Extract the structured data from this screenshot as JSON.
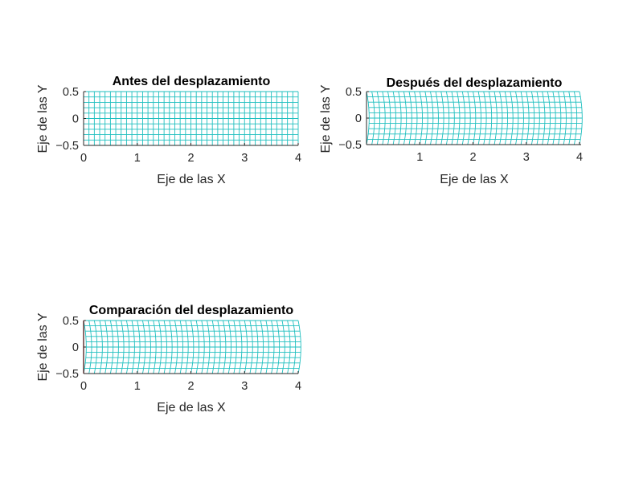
{
  "colors": {
    "mesh": "#1fbfbf",
    "axis": "#262626",
    "tick_text": "#262626",
    "title": "#000000",
    "reference_line": "#e03030",
    "background": "#ffffff"
  },
  "chart_data": [
    {
      "type": "mesh",
      "title": "Antes del desplazamiento",
      "xlabel": "Eje de las X",
      "ylabel": "Eje de las Y",
      "xlim": [
        0,
        4
      ],
      "ylim": [
        -0.5,
        0.5
      ],
      "x_ticks": [
        "0",
        "1",
        "2",
        "3",
        "4"
      ],
      "y_ticks": [
        "-0.5",
        "0",
        "0.5"
      ],
      "mesh": {
        "x_range": [
          0,
          4
        ],
        "y_range": [
          -0.5,
          0.5
        ],
        "columns": 40,
        "rows": 10,
        "tip_bulge": 0,
        "root_bulge": 0
      },
      "box": false
    },
    {
      "type": "mesh",
      "title": "Después del desplazamiento",
      "xlabel": "Eje de las X",
      "ylabel": "Eje de las Y",
      "xlim": [
        0,
        4.03
      ],
      "ylim": [
        -0.5,
        0.5
      ],
      "x_ticks": [
        "1",
        "2",
        "3",
        "4"
      ],
      "y_ticks": [
        "-0.5",
        "0",
        "0.5"
      ],
      "mesh": {
        "x_range": [
          0,
          4
        ],
        "y_range": [
          -0.5,
          0.5
        ],
        "columns": 40,
        "rows": 10,
        "tip_bulge": 0.05,
        "root_bulge": 0.05
      },
      "box": false
    },
    {
      "type": "mesh",
      "title": "Comparación del desplazamiento",
      "xlabel": "Eje de las X",
      "ylabel": "Eje de las Y",
      "xlim": [
        0,
        4
      ],
      "ylim": [
        -0.5,
        0.5
      ],
      "x_ticks": [
        "0",
        "1",
        "2",
        "3",
        "4"
      ],
      "y_ticks": [
        "-0.5",
        "0",
        "0.5"
      ],
      "mesh": {
        "x_range": [
          0,
          4
        ],
        "y_range": [
          -0.5,
          0.5
        ],
        "columns": 40,
        "rows": 10,
        "tip_bulge": 0.05,
        "root_bulge": 0.05
      },
      "reference_line": {
        "x": [
          0,
          0
        ],
        "y": [
          -0.5,
          0.5
        ]
      },
      "box": false
    }
  ]
}
